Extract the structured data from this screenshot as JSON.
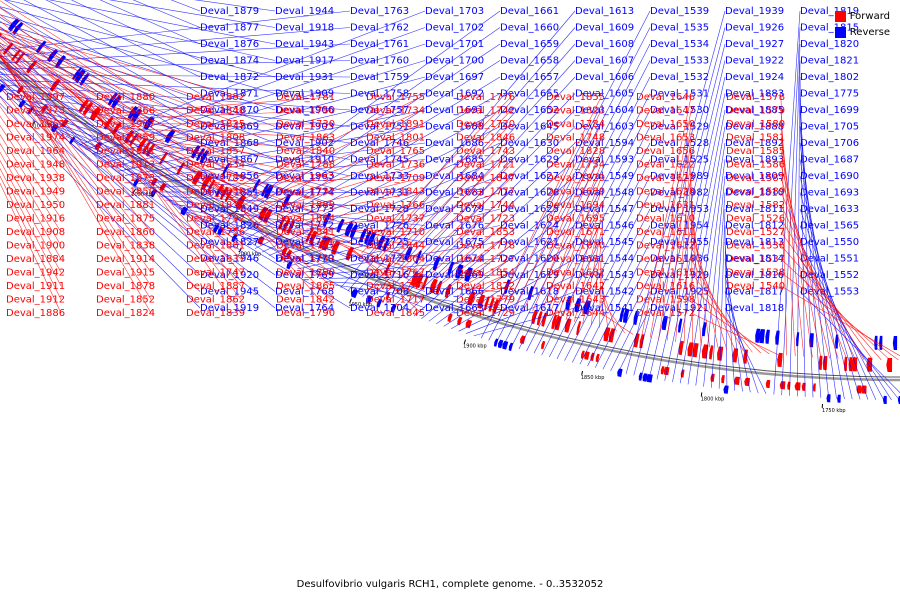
{
  "legend": {
    "forward": "Forward",
    "reverse": "Reverse"
  },
  "colors": {
    "forward": "#ff0000",
    "reverse": "#0000ff"
  },
  "caption": "Desulfovibrio vulgaris RCH1, complete genome. - 0..3532052",
  "ticks": [
    "2250 kbp",
    "2200 kbp",
    "2150 kbp",
    "2100 kbp",
    "2050 kbp",
    "2000 kbp",
    "1950 kbp",
    "1900 kbp",
    "1850 kbp",
    "1800 kbp",
    "1750 kbp"
  ],
  "reverse_labels": [
    "Deval_1879",
    "Deval_1877",
    "Deval_1876",
    "Deval_1874",
    "Deval_1872",
    "Deval_1871",
    "Deval_1870",
    "Deval_1869",
    "Deval_1868",
    "Deval_1867",
    "Deval_1856",
    "Deval_1851",
    "Deval_1849",
    "Deval_1826",
    "Deval_1827",
    "Deval_1946",
    "Deval_1920",
    "Deval_1945",
    "Deval_1919",
    "Deval_1944",
    "Deval_1918",
    "Deval_1943",
    "Deval_1917",
    "Deval_1931",
    "Deval_1909",
    "Deval_1906",
    "Deval_1903",
    "Deval_1902",
    "Deval_1910",
    "Deval_1963",
    "Deval_1774",
    "Deval_1773",
    "Deval_1772",
    "Deval_1771",
    "Deval_1770",
    "Deval_1769",
    "Deval_1768",
    "Deval_1764",
    "Deval_1763",
    "Deval_1762",
    "Deval_1761",
    "Deval_1760",
    "Deval_1759",
    "Deval_1758",
    "Deval_1757",
    "Deval_1751",
    "Deval_1746",
    "Deval_1745",
    "Deval_1733",
    "Deval_1731",
    "Deval_1728",
    "Deval_1726",
    "Deval_1725",
    "Deval_1724",
    "Deval_1716",
    "Deval_1708",
    "Deval_1704",
    "Deval_1703",
    "Deval_1702",
    "Deval_1701",
    "Deval_1700",
    "Deval_1697",
    "Deval_1692",
    "Deval_1691",
    "Deval_1688",
    "Deval_1686",
    "Deval_1685",
    "Deval_1684",
    "Deval_1683",
    "Deval_1679",
    "Deval_1676",
    "Deval_1675",
    "Deval_1674",
    "Deval_1669",
    "Deval_1666",
    "Deval_1663",
    "Deval_1661",
    "Deval_1660",
    "Deval_1659",
    "Deval_1658",
    "Deval_1657",
    "Deval_1655",
    "Deval_1652",
    "Deval_1645",
    "Deval_1630",
    "Deval_1629",
    "Deval_1627",
    "Deval_1626",
    "Deval_1625",
    "Deval_1624",
    "Deval_1621",
    "Deval_1620",
    "Deval_1619",
    "Deval_1618",
    "Deval_1617",
    "Deval_1613",
    "Deval_1609",
    "Deval_1608",
    "Deval_1607",
    "Deval_1606",
    "Deval_1605",
    "Deval_1604",
    "Deval_1603",
    "Deval_1594",
    "Deval_1593",
    "Deval_1549",
    "Deval_1548",
    "Deval_1547",
    "Deval_1546",
    "Deval_1545",
    "Deval_1544",
    "Deval_1543",
    "Deval_1542",
    "Deval_1541",
    "Deval_1539",
    "Deval_1535",
    "Deval_1534",
    "Deval_1533",
    "Deval_1532",
    "Deval_1531",
    "Deval_1530",
    "Deval_1529",
    "Deval_1528",
    "Deval_1525",
    "Deval_1989",
    "Deval_1982",
    "Deval_1953",
    "Deval_1954",
    "Deval_1955",
    "Deval_1936",
    "Deval_1929",
    "Deval_1925",
    "Deval_1921",
    "Deval_1939",
    "Deval_1926",
    "Deval_1927",
    "Deval_1922",
    "Deval_1924",
    "Deval_1883",
    "Deval_1885",
    "Deval_1888",
    "Deval_1892",
    "Deval_1893",
    "Deval_1809",
    "Deval_1810",
    "Deval_1811",
    "Deval_1812",
    "Deval_1813",
    "Deval_1814",
    "Deval_1816",
    "Deval_1817",
    "Deval_1818",
    "Deval_1819",
    "Deval_1815",
    "Deval_1820",
    "Deval_1821",
    "Deval_1802",
    "Deval_1775",
    "Deval_1699",
    "Deval_1705",
    "Deval_1706",
    "Deval_1687",
    "Deval_1690",
    "Deval_1693",
    "Deval_1633",
    "Deval_1565",
    "Deval_1550",
    "Deval_1551",
    "Deval_1552",
    "Deval_1553"
  ],
  "forward_labels": [
    "Deval_1997",
    "Deval_1973",
    "Deval_1962",
    "Deval_1974",
    "Deval_1964",
    "Deval_1948",
    "Deval_1938",
    "Deval_1949",
    "Deval_1950",
    "Deval_1916",
    "Deval_1908",
    "Deval_1900",
    "Deval_1884",
    "Deval_1942",
    "Deval_1911",
    "Deval_1912",
    "Deval_1886",
    "Deval_1880",
    "Deval_1866",
    "Deval_1907",
    "Deval_1859",
    "Deval_1901",
    "Deval_1913",
    "Deval_1873",
    "Deval_1850",
    "Deval_1881",
    "Deval_1875",
    "Deval_1860",
    "Deval_1838",
    "Deval_1914",
    "Deval_1915",
    "Deval_1878",
    "Deval_1852",
    "Deval_1824",
    "Deval_1882",
    "Deval_1848",
    "Deval_1825",
    "Deval_1808",
    "Deval_1857",
    "Deval_1834",
    "Deval_1789",
    "Deval_1858",
    "Deval_1836",
    "Deval_1792",
    "Deval_1756",
    "Deval_1861",
    "Deval_1837",
    "Deval_1747",
    "Deval_1887",
    "Deval_1862",
    "Deval_1839",
    "Deval_1781",
    "Deval_1750",
    "Deval_1730",
    "Deval_1863",
    "Deval_1840",
    "Deval_1788",
    "Deval_1752",
    "Deval_1732",
    "Deval_1889",
    "Deval_1864",
    "Deval_1841",
    "Deval_1787",
    "Deval_1753",
    "Deval_1890",
    "Deval_1865",
    "Deval_1842",
    "Deval_1790",
    "Deval_1755",
    "Deval_1734",
    "Deval_1891",
    "Deval_1801",
    "Deval_1765",
    "Deval_1736",
    "Deval_1709",
    "Deval_1843",
    "Deval_1766",
    "Deval_1737",
    "Deval_1710",
    "Deval_1844",
    "Deval_1804",
    "Deval_1767",
    "Deval_1741",
    "Deval_1717",
    "Deval_1845",
    "Deval_1776",
    "Deval_1742",
    "Deval_1720",
    "Deval_1846",
    "Deval_1743",
    "Deval_1721",
    "Deval_1847",
    "Deval_1777",
    "Deval_1744",
    "Deval_1723",
    "Deval_1853",
    "Deval_1778",
    "Deval_1727",
    "Deval_1854",
    "Deval_1822",
    "Deval_1779",
    "Deval_1729",
    "Deval_1855",
    "Deval_1823",
    "Deval_1784",
    "Deval_1748",
    "Deval_1828",
    "Deval_1754",
    "Deval_1829",
    "Deval_1689",
    "Deval_1694",
    "Deval_1695",
    "Deval_1671",
    "Deval_1670",
    "Deval_1681",
    "Deval_1682",
    "Deval_1642",
    "Deval_1643",
    "Deval_1644",
    "Deval_1646",
    "Deval_1647",
    "Deval_1650",
    "Deval_1653",
    "Deval_1656",
    "Deval_1622",
    "Deval_1623",
    "Deval_1628",
    "Deval_1631",
    "Deval_1610",
    "Deval_1611",
    "Deval_1612",
    "Deval_1614",
    "Deval_1615",
    "Deval_1616",
    "Deval_1598",
    "Deval_1572",
    "Deval_1578",
    "Deval_1579",
    "Deval_1580",
    "Deval_1581",
    "Deval_1585",
    "Deval_1586",
    "Deval_1587",
    "Deval_1589",
    "Deval_1582",
    "Deval_1526",
    "Deval_1527",
    "Deval_1536",
    "Deval_1537",
    "Deval_1538",
    "Deval_1540"
  ]
}
